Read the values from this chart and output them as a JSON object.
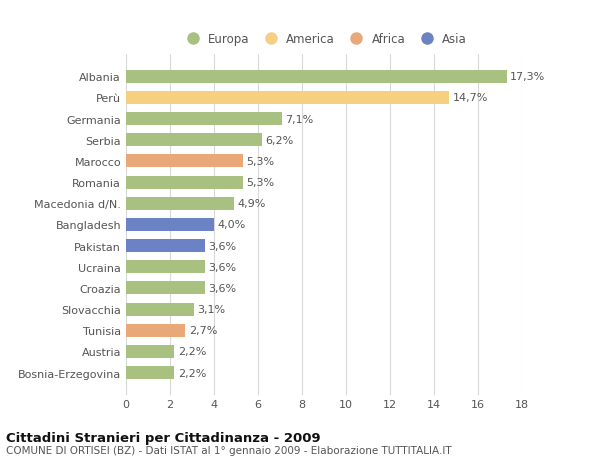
{
  "categories": [
    "Albania",
    "Perù",
    "Germania",
    "Serbia",
    "Marocco",
    "Romania",
    "Macedonia d/N.",
    "Bangladesh",
    "Pakistan",
    "Ucraina",
    "Croazia",
    "Slovacchia",
    "Tunisia",
    "Austria",
    "Bosnia-Erzegovina"
  ],
  "values": [
    17.3,
    14.7,
    7.1,
    6.2,
    5.3,
    5.3,
    4.9,
    4.0,
    3.6,
    3.6,
    3.6,
    3.1,
    2.7,
    2.2,
    2.2
  ],
  "labels": [
    "17,3%",
    "14,7%",
    "7,1%",
    "6,2%",
    "5,3%",
    "5,3%",
    "4,9%",
    "4,0%",
    "3,6%",
    "3,6%",
    "3,6%",
    "3,1%",
    "2,7%",
    "2,2%",
    "2,2%"
  ],
  "colors": [
    "#a8c080",
    "#f5d080",
    "#a8c080",
    "#a8c080",
    "#e8a878",
    "#a8c080",
    "#a8c080",
    "#6b82c4",
    "#6b82c4",
    "#a8c080",
    "#a8c080",
    "#a8c080",
    "#e8a878",
    "#a8c080",
    "#a8c080"
  ],
  "legend_labels": [
    "Europa",
    "America",
    "Africa",
    "Asia"
  ],
  "legend_colors": [
    "#a8c080",
    "#f5d080",
    "#e8a878",
    "#6b82c4"
  ],
  "xlim": [
    0,
    18
  ],
  "xticks": [
    0,
    2,
    4,
    6,
    8,
    10,
    12,
    14,
    16,
    18
  ],
  "title": "Cittadini Stranieri per Cittadinanza - 2009",
  "subtitle": "COMUNE DI ORTISEI (BZ) - Dati ISTAT al 1° gennaio 2009 - Elaborazione TUTTITALIA.IT",
  "bg_color": "#ffffff",
  "grid_color": "#d8d8d8",
  "bar_height": 0.62,
  "label_fontsize": 8,
  "tick_fontsize": 8,
  "title_fontsize": 9.5,
  "subtitle_fontsize": 7.5
}
